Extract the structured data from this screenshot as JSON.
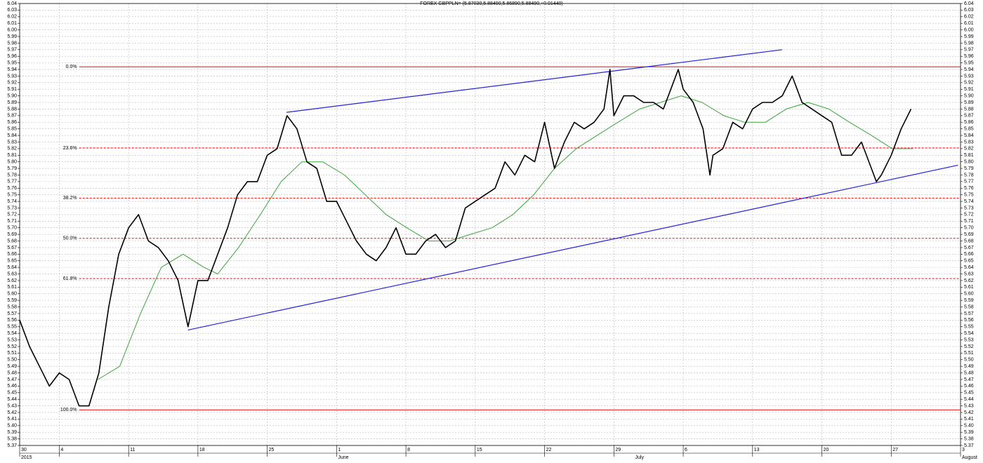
{
  "chart_data": {
    "type": "line",
    "title": "FOREX GBPPLN= (5.87030,5.88490,5.86890,5.88490,+0.01440)",
    "xlim": [
      0,
      95
    ],
    "xticks": [
      {
        "value": 0,
        "label": "30"
      },
      {
        "value": 4,
        "label": "4"
      },
      {
        "value": 11,
        "label": "11"
      },
      {
        "value": 18,
        "label": "18"
      },
      {
        "value": 25,
        "label": "25"
      },
      {
        "value": 32,
        "label": "1"
      },
      {
        "value": 39,
        "label": "8"
      },
      {
        "value": 46,
        "label": "15"
      },
      {
        "value": 53,
        "label": "22"
      },
      {
        "value": 60,
        "label": "29"
      },
      {
        "value": 67,
        "label": "6"
      },
      {
        "value": 74,
        "label": "13"
      },
      {
        "value": 81,
        "label": "20"
      },
      {
        "value": 88,
        "label": "27"
      },
      {
        "value": 95,
        "label": "3"
      }
    ],
    "period_labels": [
      {
        "value": 0,
        "label": "2015"
      },
      {
        "value": 32,
        "label": "June"
      },
      {
        "value": 62,
        "label": "July"
      },
      {
        "value": 95,
        "label": "August"
      }
    ],
    "ylim": [
      5.37,
      6.04
    ],
    "yticks": [
      5.37,
      5.38,
      5.39,
      {
        "value": 5.4,
        "label": "5.40"
      },
      5.41,
      5.42,
      5.43,
      5.44,
      5.45,
      5.46,
      5.47,
      5.48,
      5.49,
      {
        "value": 5.5,
        "label": "5.50"
      },
      5.51,
      5.52,
      5.53,
      5.54,
      5.55,
      5.56,
      5.57,
      5.58,
      5.59,
      {
        "value": 5.6,
        "label": "5.60"
      },
      5.61,
      5.62,
      5.63,
      5.64,
      5.65,
      5.66,
      5.67,
      5.68,
      5.69,
      {
        "value": 5.7,
        "label": "5.70"
      },
      5.71,
      5.72,
      5.73,
      5.74,
      5.75,
      5.76,
      5.77,
      5.78,
      5.79,
      {
        "value": 5.8,
        "label": "5.80"
      },
      5.81,
      5.82,
      5.83,
      5.84,
      5.85,
      5.86,
      5.87,
      5.88,
      5.89,
      {
        "value": 5.9,
        "label": "5.90"
      },
      5.91,
      5.92,
      5.93,
      5.94,
      5.95,
      5.96,
      5.97,
      5.98,
      5.99,
      {
        "value": 6,
        "label": "6.00"
      },
      6.01,
      6.02,
      6.03,
      6.04
    ],
    "grid": true,
    "series": [
      {
        "color": "#000000",
        "x": [
          0,
          1,
          2,
          3,
          4,
          5,
          6,
          7,
          8,
          9,
          10,
          11,
          12,
          13,
          14,
          15,
          16,
          17,
          18,
          19,
          20,
          21,
          22,
          23,
          24,
          25,
          26,
          27,
          28,
          29,
          30,
          31,
          32,
          33,
          34,
          35,
          36,
          37,
          38,
          39,
          40,
          41,
          42,
          43,
          44,
          45,
          46,
          47,
          48,
          49,
          50,
          51,
          52,
          53,
          54,
          55,
          56,
          57,
          58,
          59,
          59.6,
          60,
          61,
          62,
          63,
          64,
          65,
          66,
          66.5,
          67,
          68,
          69,
          69.7,
          70,
          71,
          72,
          73,
          74,
          75,
          76,
          77,
          78,
          79,
          80,
          81,
          82,
          83,
          84,
          85,
          86,
          86.5,
          87,
          88,
          89,
          90
        ],
        "values": [
          5.56,
          5.52,
          5.49,
          5.46,
          5.48,
          5.47,
          5.43,
          5.43,
          5.48,
          5.58,
          5.66,
          5.7,
          5.72,
          5.68,
          5.67,
          5.65,
          5.62,
          5.55,
          5.62,
          5.62,
          5.66,
          5.7,
          5.75,
          5.77,
          5.77,
          5.81,
          5.82,
          5.87,
          5.85,
          5.8,
          5.79,
          5.74,
          5.74,
          5.71,
          5.68,
          5.66,
          5.65,
          5.67,
          5.7,
          5.66,
          5.66,
          5.68,
          5.69,
          5.67,
          5.68,
          5.73,
          5.74,
          5.75,
          5.76,
          5.8,
          5.78,
          5.81,
          5.8,
          5.86,
          5.79,
          5.83,
          5.86,
          5.85,
          5.86,
          5.88,
          5.94,
          5.87,
          5.9,
          5.9,
          5.89,
          5.89,
          5.88,
          5.92,
          5.94,
          5.91,
          5.89,
          5.85,
          5.78,
          5.81,
          5.82,
          5.86,
          5.85,
          5.88,
          5.89,
          5.89,
          5.9,
          5.93,
          5.89,
          5.88,
          5.87,
          5.86,
          5.81,
          5.81,
          5.83,
          5.79,
          5.77,
          5.78,
          5.81,
          5.85,
          5.88
        ]
      },
      {
        "color": "#3aa53a",
        "x": [
          7.9,
          10.1,
          12.2,
          14.3,
          16.5,
          18.6,
          20.0,
          22.1,
          24.3,
          26.4,
          28.5,
          30.6,
          32.8,
          34.9,
          37.0,
          39.1,
          41.3,
          43.4,
          45.5,
          47.7,
          49.8,
          51.9,
          54.0,
          56.2,
          58.3,
          60.4,
          62.6,
          64.7,
          66.8,
          68.9,
          71.1,
          73.2,
          75.3,
          77.4,
          79.6,
          81.7,
          83.8,
          86.0,
          88.1,
          90.2
        ],
        "values": [
          5.47,
          5.49,
          5.57,
          5.64,
          5.66,
          5.64,
          5.63,
          5.67,
          5.72,
          5.77,
          5.8,
          5.8,
          5.78,
          5.75,
          5.72,
          5.7,
          5.68,
          5.68,
          5.69,
          5.7,
          5.72,
          5.75,
          5.79,
          5.82,
          5.84,
          5.86,
          5.88,
          5.89,
          5.9,
          5.89,
          5.87,
          5.86,
          5.86,
          5.88,
          5.89,
          5.88,
          5.86,
          5.84,
          5.82,
          5.82
        ]
      }
    ],
    "trendlines": [
      {
        "color": "#2222dd",
        "x": [
          26.95,
          77.0
        ],
        "values": [
          5.875,
          5.97
        ]
      },
      {
        "color": "#2222dd",
        "x": [
          17.0,
          94.75
        ],
        "values": [
          5.545,
          5.795
        ]
      }
    ],
    "fib_color": "#ff0000",
    "fib_levels": [
      {
        "label": "0.0%",
        "value": 5.944,
        "dashed": false
      },
      {
        "label": "23.6%",
        "value": 5.821,
        "dashed": true
      },
      {
        "label": "38.2%",
        "value": 5.745,
        "dashed": true
      },
      {
        "label": "50.0%",
        "value": 5.684,
        "dashed": true
      },
      {
        "label": "61.8%",
        "value": 5.623,
        "dashed": true
      },
      {
        "label": "100.0%",
        "value": 5.424,
        "dashed": false
      }
    ]
  }
}
